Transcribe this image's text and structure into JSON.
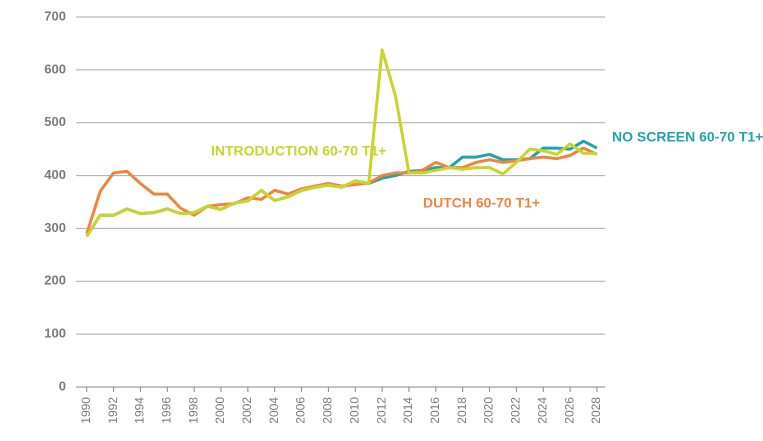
{
  "chart_data": {
    "type": "line",
    "x": [
      1990,
      1991,
      1992,
      1993,
      1994,
      1995,
      1996,
      1997,
      1998,
      1999,
      2000,
      2001,
      2002,
      2003,
      2004,
      2005,
      2006,
      2007,
      2008,
      2009,
      2010,
      2011,
      2012,
      2013,
      2014,
      2015,
      2016,
      2017,
      2018,
      2019,
      2020,
      2021,
      2022,
      2023,
      2024,
      2025,
      2026,
      2027,
      2028
    ],
    "series": [
      {
        "name": "NO SCREEN 60-70 T1+",
        "color": "#1fa5a8",
        "values": [
          285,
          325,
          325,
          337,
          328,
          330,
          337,
          328,
          330,
          342,
          336,
          348,
          352,
          372,
          353,
          360,
          372,
          378,
          382,
          378,
          390,
          385,
          395,
          400,
          408,
          410,
          415,
          415,
          435,
          435,
          440,
          430,
          430,
          432,
          452,
          452,
          450,
          465,
          452
        ]
      },
      {
        "name": "DUTCH 60-70 T1+",
        "color": "#f0843c",
        "values": [
          290,
          370,
          405,
          408,
          385,
          365,
          365,
          338,
          325,
          342,
          345,
          347,
          358,
          355,
          372,
          365,
          375,
          380,
          385,
          380,
          383,
          386,
          400,
          405,
          405,
          410,
          425,
          415,
          415,
          425,
          430,
          425,
          428,
          432,
          435,
          432,
          438,
          452,
          440
        ]
      },
      {
        "name": "INTRODUCTION 60-70 T1+",
        "color": "#c8d42a",
        "values": [
          285,
          325,
          325,
          337,
          328,
          330,
          337,
          328,
          330,
          342,
          336,
          348,
          352,
          372,
          353,
          360,
          372,
          378,
          382,
          378,
          390,
          385,
          638,
          550,
          405,
          405,
          410,
          415,
          412,
          415,
          415,
          403,
          425,
          450,
          447,
          440,
          460,
          442,
          442
        ]
      }
    ],
    "xlim": [
      1989.2,
      2028.6
    ],
    "xticks": [
      1990,
      1992,
      1994,
      1996,
      1998,
      2000,
      2002,
      2004,
      2006,
      2008,
      2010,
      2012,
      2014,
      2016,
      2018,
      2020,
      2022,
      2024,
      2026,
      2028
    ],
    "ylim": [
      0,
      700
    ],
    "yticks": [
      0,
      100,
      200,
      300,
      400,
      500,
      600,
      700
    ],
    "grid": true
  }
}
